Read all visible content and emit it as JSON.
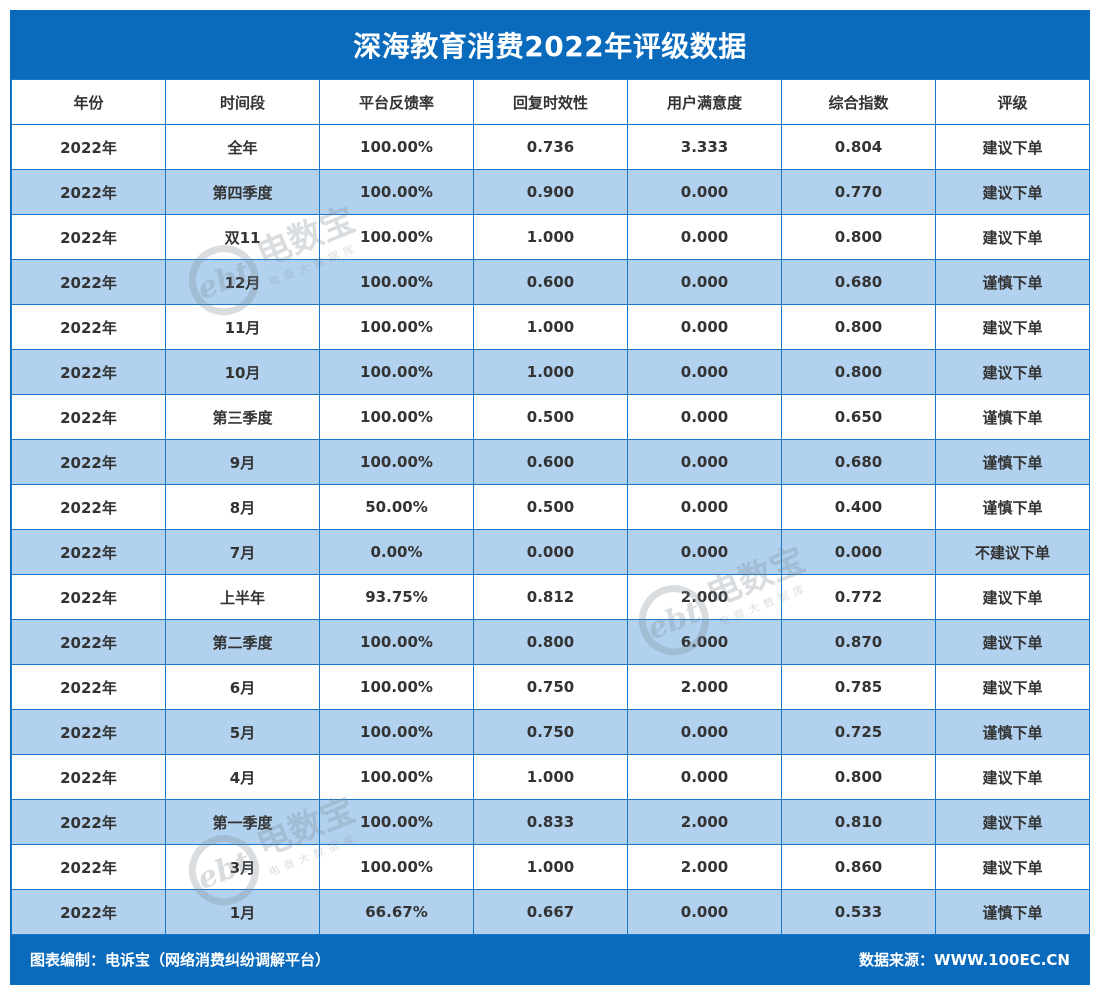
{
  "title": "深海教育消费2022年评级数据",
  "columns": [
    "年份",
    "时间段",
    "平台反馈率",
    "回复时效性",
    "用户满意度",
    "综合指数",
    "评级"
  ],
  "rows": [
    [
      "2022年",
      "全年",
      "100.00%",
      "0.736",
      "3.333",
      "0.804",
      "建议下单"
    ],
    [
      "2022年",
      "第四季度",
      "100.00%",
      "0.900",
      "0.000",
      "0.770",
      "建议下单"
    ],
    [
      "2022年",
      "双11",
      "100.00%",
      "1.000",
      "0.000",
      "0.800",
      "建议下单"
    ],
    [
      "2022年",
      "12月",
      "100.00%",
      "0.600",
      "0.000",
      "0.680",
      "谨慎下单"
    ],
    [
      "2022年",
      "11月",
      "100.00%",
      "1.000",
      "0.000",
      "0.800",
      "建议下单"
    ],
    [
      "2022年",
      "10月",
      "100.00%",
      "1.000",
      "0.000",
      "0.800",
      "建议下单"
    ],
    [
      "2022年",
      "第三季度",
      "100.00%",
      "0.500",
      "0.000",
      "0.650",
      "谨慎下单"
    ],
    [
      "2022年",
      "9月",
      "100.00%",
      "0.600",
      "0.000",
      "0.680",
      "谨慎下单"
    ],
    [
      "2022年",
      "8月",
      "50.00%",
      "0.500",
      "0.000",
      "0.400",
      "谨慎下单"
    ],
    [
      "2022年",
      "7月",
      "0.00%",
      "0.000",
      "0.000",
      "0.000",
      "不建议下单"
    ],
    [
      "2022年",
      "上半年",
      "93.75%",
      "0.812",
      "2.000",
      "0.772",
      "建议下单"
    ],
    [
      "2022年",
      "第二季度",
      "100.00%",
      "0.800",
      "6.000",
      "0.870",
      "建议下单"
    ],
    [
      "2022年",
      "6月",
      "100.00%",
      "0.750",
      "2.000",
      "0.785",
      "建议下单"
    ],
    [
      "2022年",
      "5月",
      "100.00%",
      "0.750",
      "0.000",
      "0.725",
      "谨慎下单"
    ],
    [
      "2022年",
      "4月",
      "100.00%",
      "1.000",
      "0.000",
      "0.800",
      "建议下单"
    ],
    [
      "2022年",
      "第一季度",
      "100.00%",
      "0.833",
      "2.000",
      "0.810",
      "建议下单"
    ],
    [
      "2022年",
      "3月",
      "100.00%",
      "1.000",
      "2.000",
      "0.860",
      "建议下单"
    ],
    [
      "2022年",
      "1月",
      "66.67%",
      "0.667",
      "0.000",
      "0.533",
      "谨慎下单"
    ]
  ],
  "footer": {
    "left": "图表编制：电诉宝（网络消费纠纷调解平台）",
    "right": "数据来源：WWW.100EC.CN"
  },
  "watermark": {
    "logo": "ebt",
    "main": "电数宝",
    "sub": "电商大数据库"
  },
  "colors": {
    "frame": "#0a6bbd",
    "row_alt": "#b1d1ee",
    "grid": "#1a78c8"
  }
}
